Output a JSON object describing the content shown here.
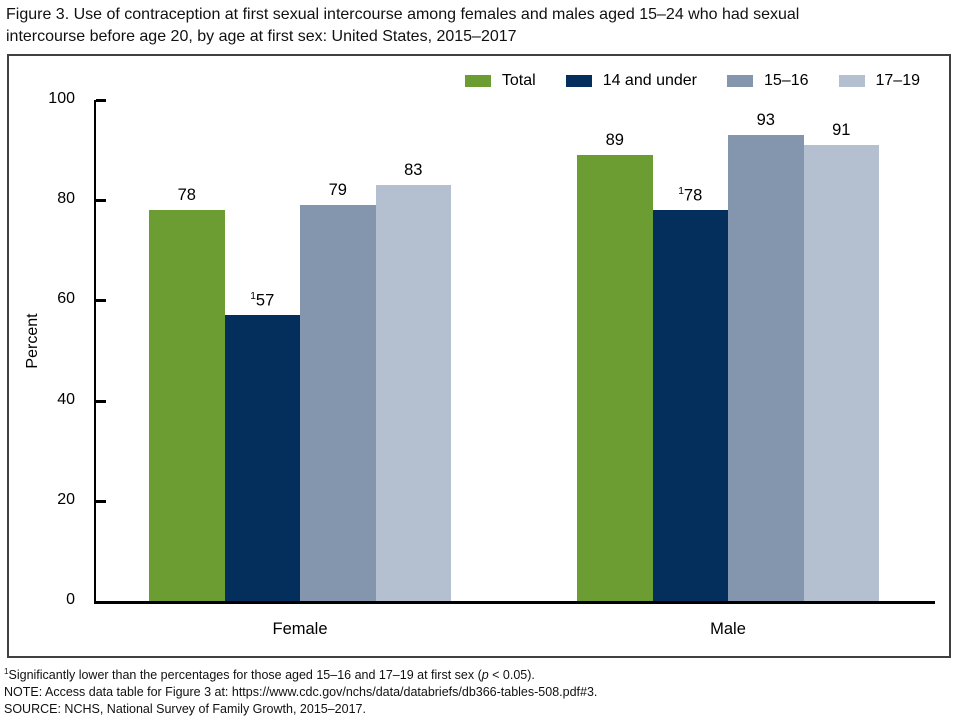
{
  "figure": {
    "title_line1": "Figure 3. Use of contraception at first sexual intercourse among females and males aged 15–24 who had sexual",
    "title_line2": "intercourse before age 20, by age at first sex: United States, 2015–2017"
  },
  "chart_data": {
    "type": "bar",
    "title": "Figure 3. Use of contraception at first sexual intercourse among females and males aged 15–24 who had sexual intercourse before age 20, by age at first sex: United States, 2015–2017",
    "categories": [
      "Female",
      "Male"
    ],
    "series": [
      {
        "name": "Total",
        "color": "#6B9D32",
        "values": [
          78,
          89
        ],
        "value_labels": [
          {
            "text": "78"
          },
          {
            "text": "89"
          }
        ]
      },
      {
        "name": "14 and under",
        "color": "#042E5B",
        "values": [
          57,
          78
        ],
        "value_labels": [
          {
            "sup": "1",
            "text": "57"
          },
          {
            "sup": "1",
            "text": "78"
          }
        ]
      },
      {
        "name": "15–16",
        "color": "#8396AE",
        "values": [
          79,
          93
        ],
        "value_labels": [
          {
            "text": "79"
          },
          {
            "text": "93"
          }
        ]
      },
      {
        "name": "17–19",
        "color": "#B4C0D0",
        "values": [
          83,
          91
        ],
        "value_labels": [
          {
            "text": "83"
          },
          {
            "text": "91"
          }
        ]
      }
    ],
    "xlabel": "",
    "ylabel": "Percent",
    "ylim": [
      0,
      100
    ],
    "yticks": [
      0,
      20,
      40,
      60,
      80,
      100
    ],
    "legend_position": "top-right",
    "grid": false
  },
  "footnotes": {
    "fn1_sup": "1",
    "fn1_pre": "Significantly lower than the percentages for those aged 15–16 and 17–19 at first sex (",
    "fn1_italic": "p",
    "fn1_post": " < 0.05).",
    "note": "NOTE: Access data table for Figure 3 at: https://www.cdc.gov/nchs/data/databriefs/db366-tables-508.pdf#3.",
    "source": "SOURCE: NCHS, National Survey of Family Growth, 2015–2017."
  }
}
